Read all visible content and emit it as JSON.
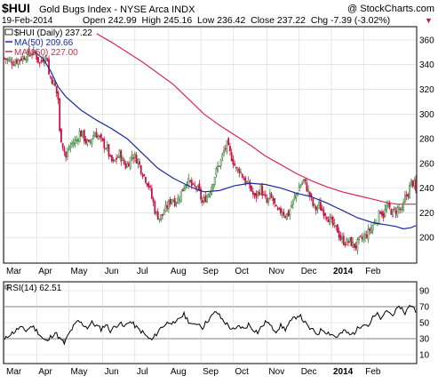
{
  "header": {
    "symbol": "$HUI",
    "name": "Gold Bugs Index - NYSE Arca INDX",
    "watermark": "@ StockCharts.com",
    "date": "19-Feb-2014",
    "quote": "Open 242.99  High 245.16  Low 236.42  Close 237.22  Chg -7.39 (-3.02%)",
    "quote_arrow": "▼"
  },
  "legend": {
    "price": "$HUI (Daily) 237.22",
    "ma50": "MA(50) 209.66",
    "ma150": "MA(150) 227.00"
  },
  "rsi_panel": {
    "label": "RSI(14) 62.51"
  },
  "colors": {
    "up_candle": "#2e7d32",
    "down_candle": "#cc1144",
    "ma50": "#1a2a9a",
    "ma150": "#d8284f",
    "rsi_line": "#000000",
    "rsi_fill": "#9a9a9a",
    "grid": "#d8d8d8"
  },
  "chart_data": [
    {
      "type": "candlestick",
      "title": "$HUI Gold Bugs Index - NYSE Arca INDX",
      "ylim": [
        180,
        370
      ],
      "y_ticks": [
        200,
        220,
        240,
        260,
        280,
        300,
        320,
        340,
        360
      ],
      "x_ticks": [
        "Mar",
        "Apr",
        "May",
        "Jun",
        "Jul",
        "Aug",
        "Sep",
        "Oct",
        "Nov",
        "Dec",
        "2014",
        "Feb"
      ],
      "grid": true,
      "close_path": [
        [
          0,
          345
        ],
        [
          6,
          342
        ],
        [
          12,
          346
        ],
        [
          18,
          350
        ],
        [
          20,
          349
        ],
        [
          23,
          341
        ],
        [
          26,
          347
        ],
        [
          28,
          345
        ],
        [
          29,
          332
        ],
        [
          31,
          328
        ],
        [
          33,
          322
        ],
        [
          35,
          312
        ],
        [
          36,
          285
        ],
        [
          38,
          275
        ],
        [
          40,
          265
        ],
        [
          42,
          272
        ],
        [
          44,
          276
        ],
        [
          47,
          279
        ],
        [
          49,
          285
        ],
        [
          51,
          283
        ],
        [
          53,
          278
        ],
        [
          55,
          275
        ],
        [
          57,
          281
        ],
        [
          59,
          285
        ],
        [
          61,
          282
        ],
        [
          63,
          278
        ],
        [
          65,
          275
        ],
        [
          67,
          272
        ],
        [
          69,
          263
        ],
        [
          71,
          260
        ],
        [
          73,
          264
        ],
        [
          75,
          268
        ],
        [
          77,
          262
        ],
        [
          79,
          258
        ],
        [
          81,
          261
        ],
        [
          83,
          267
        ],
        [
          85,
          265
        ],
        [
          87,
          262
        ],
        [
          89,
          255
        ],
        [
          91,
          250
        ],
        [
          93,
          245
        ],
        [
          94,
          242
        ],
        [
          95,
          238
        ],
        [
          96,
          232
        ],
        [
          97,
          228
        ],
        [
          98,
          222
        ],
        [
          99,
          219
        ],
        [
          101,
          216
        ],
        [
          103,
          218
        ],
        [
          105,
          223
        ],
        [
          107,
          227
        ],
        [
          109,
          232
        ],
        [
          111,
          229
        ],
        [
          113,
          231
        ],
        [
          115,
          236
        ],
        [
          117,
          242
        ],
        [
          119,
          246
        ],
        [
          121,
          244
        ],
        [
          123,
          240
        ],
        [
          125,
          241
        ],
        [
          127,
          236
        ],
        [
          129,
          228
        ],
        [
          131,
          232
        ],
        [
          133,
          236
        ],
        [
          135,
          242
        ],
        [
          137,
          250
        ],
        [
          139,
          257
        ],
        [
          141,
          262
        ],
        [
          143,
          270
        ],
        [
          145,
          275
        ],
        [
          147,
          268
        ],
        [
          149,
          262
        ],
        [
          151,
          255
        ],
        [
          153,
          255
        ],
        [
          155,
          250
        ],
        [
          157,
          245
        ],
        [
          159,
          243
        ],
        [
          161,
          238
        ],
        [
          163,
          232
        ],
        [
          165,
          236
        ],
        [
          167,
          240
        ],
        [
          169,
          233
        ],
        [
          171,
          228
        ],
        [
          173,
          233
        ],
        [
          175,
          230
        ],
        [
          177,
          222
        ],
        [
          179,
          220
        ],
        [
          181,
          222
        ],
        [
          183,
          218
        ],
        [
          185,
          219
        ],
        [
          187,
          226
        ],
        [
          189,
          232
        ],
        [
          191,
          238
        ],
        [
          193,
          243
        ],
        [
          195,
          246
        ],
        [
          197,
          240
        ],
        [
          199,
          234
        ],
        [
          201,
          226
        ],
        [
          203,
          223
        ],
        [
          205,
          226
        ],
        [
          207,
          222
        ],
        [
          209,
          220
        ],
        [
          211,
          216
        ],
        [
          213,
          212
        ],
        [
          215,
          208
        ],
        [
          217,
          206
        ],
        [
          219,
          199
        ],
        [
          221,
          197
        ],
        [
          223,
          196
        ],
        [
          225,
          197
        ],
        [
          227,
          194
        ],
        [
          229,
          193
        ],
        [
          231,
          197
        ],
        [
          233,
          199
        ],
        [
          235,
          201
        ],
        [
          237,
          204
        ],
        [
          239,
          208
        ],
        [
          241,
          212
        ],
        [
          243,
          215
        ],
        [
          245,
          222
        ],
        [
          247,
          218
        ],
        [
          249,
          225
        ],
        [
          251,
          223
        ],
        [
          253,
          220
        ],
        [
          255,
          222
        ],
        [
          257,
          224
        ],
        [
          259,
          221
        ],
        [
          261,
          232
        ],
        [
          263,
          236
        ],
        [
          265,
          245
        ],
        [
          267,
          243
        ],
        [
          268,
          237
        ]
      ],
      "ma50": [
        [
          20,
          350
        ],
        [
          25,
          345
        ],
        [
          30,
          335
        ],
        [
          35,
          322
        ],
        [
          40,
          314
        ],
        [
          50,
          303
        ],
        [
          60,
          295
        ],
        [
          70,
          288
        ],
        [
          80,
          280
        ],
        [
          90,
          268
        ],
        [
          100,
          256
        ],
        [
          110,
          248
        ],
        [
          118,
          243
        ],
        [
          125,
          239
        ],
        [
          130,
          237
        ],
        [
          140,
          238
        ],
        [
          150,
          242
        ],
        [
          160,
          244
        ],
        [
          170,
          243
        ],
        [
          180,
          240
        ],
        [
          190,
          236
        ],
        [
          200,
          233
        ],
        [
          210,
          228
        ],
        [
          220,
          222
        ],
        [
          230,
          216
        ],
        [
          240,
          212
        ],
        [
          250,
          210
        ],
        [
          255,
          209
        ],
        [
          260,
          207
        ],
        [
          265,
          208
        ],
        [
          268,
          209.66
        ]
      ],
      "ma150": [
        [
          60,
          365
        ],
        [
          70,
          358
        ],
        [
          80,
          350
        ],
        [
          90,
          342
        ],
        [
          100,
          333
        ],
        [
          110,
          324
        ],
        [
          120,
          312
        ],
        [
          130,
          300
        ],
        [
          140,
          291
        ],
        [
          150,
          283
        ],
        [
          160,
          275
        ],
        [
          170,
          266
        ],
        [
          180,
          259
        ],
        [
          190,
          252
        ],
        [
          200,
          246
        ],
        [
          210,
          241
        ],
        [
          220,
          237
        ],
        [
          230,
          234
        ],
        [
          240,
          231
        ],
        [
          250,
          228
        ],
        [
          256,
          227
        ],
        [
          262,
          227
        ],
        [
          268,
          227
        ]
      ]
    },
    {
      "type": "line",
      "title": "RSI(14)",
      "ylim": [
        0,
        100
      ],
      "y_ticks": [
        10,
        30,
        50,
        70,
        90
      ],
      "x_ticks": [
        "Mar",
        "Apr",
        "May",
        "Jun",
        "Jul",
        "Aug",
        "Sep",
        "Oct",
        "Nov",
        "Dec",
        "2014",
        "Feb"
      ],
      "reference_lines": [
        30,
        70
      ],
      "values": [
        [
          0,
          28
        ],
        [
          3,
          35
        ],
        [
          6,
          38
        ],
        [
          10,
          44
        ],
        [
          14,
          40
        ],
        [
          18,
          46
        ],
        [
          22,
          38
        ],
        [
          25,
          30
        ],
        [
          28,
          26
        ],
        [
          30,
          32
        ],
        [
          33,
          38
        ],
        [
          36,
          30
        ],
        [
          39,
          24
        ],
        [
          42,
          36
        ],
        [
          45,
          45
        ],
        [
          48,
          52
        ],
        [
          51,
          48
        ],
        [
          54,
          44
        ],
        [
          57,
          50
        ],
        [
          60,
          46
        ],
        [
          63,
          42
        ],
        [
          66,
          48
        ],
        [
          69,
          40
        ],
        [
          72,
          45
        ],
        [
          75,
          50
        ],
        [
          78,
          44
        ],
        [
          81,
          52
        ],
        [
          84,
          48
        ],
        [
          87,
          42
        ],
        [
          90,
          38
        ],
        [
          93,
          32
        ],
        [
          96,
          28
        ],
        [
          99,
          36
        ],
        [
          102,
          44
        ],
        [
          105,
          48
        ],
        [
          108,
          52
        ],
        [
          111,
          47
        ],
        [
          114,
          56
        ],
        [
          117,
          60
        ],
        [
          120,
          52
        ],
        [
          123,
          46
        ],
        [
          126,
          50
        ],
        [
          129,
          44
        ],
        [
          132,
          52
        ],
        [
          135,
          58
        ],
        [
          138,
          64
        ],
        [
          141,
          56
        ],
        [
          144,
          50
        ],
        [
          147,
          44
        ],
        [
          150,
          40
        ],
        [
          153,
          46
        ],
        [
          156,
          42
        ],
        [
          159,
          48
        ],
        [
          162,
          42
        ],
        [
          165,
          38
        ],
        [
          168,
          46
        ],
        [
          171,
          52
        ],
        [
          174,
          44
        ],
        [
          177,
          40
        ],
        [
          180,
          46
        ],
        [
          183,
          42
        ],
        [
          186,
          50
        ],
        [
          189,
          56
        ],
        [
          192,
          60
        ],
        [
          195,
          52
        ],
        [
          198,
          44
        ],
        [
          201,
          40
        ],
        [
          204,
          36
        ],
        [
          207,
          42
        ],
        [
          210,
          38
        ],
        [
          213,
          36
        ],
        [
          216,
          32
        ],
        [
          219,
          36
        ],
        [
          222,
          40
        ],
        [
          225,
          34
        ],
        [
          228,
          38
        ],
        [
          231,
          44
        ],
        [
          234,
          50
        ],
        [
          237,
          46
        ],
        [
          240,
          56
        ],
        [
          243,
          60
        ],
        [
          246,
          54
        ],
        [
          249,
          66
        ],
        [
          252,
          60
        ],
        [
          255,
          64
        ],
        [
          258,
          70
        ],
        [
          261,
          62
        ],
        [
          263,
          68
        ],
        [
          265,
          72
        ],
        [
          267,
          70
        ],
        [
          268,
          62.51
        ]
      ]
    }
  ]
}
